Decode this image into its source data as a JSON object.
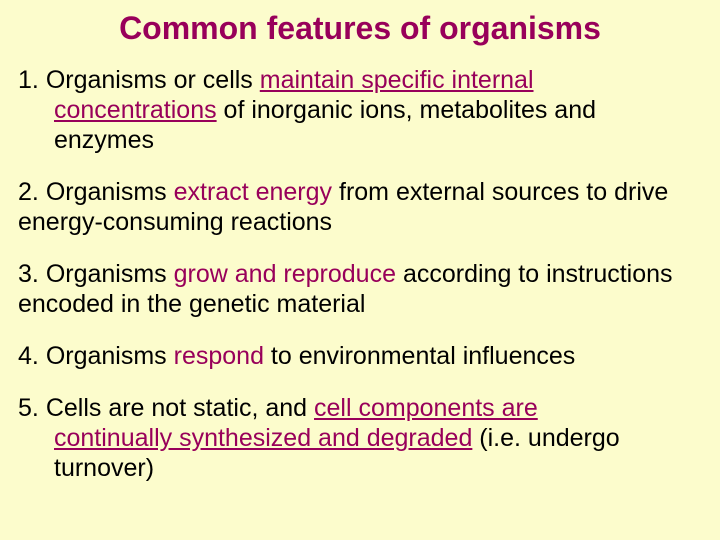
{
  "background_color": "#fcfccc",
  "title_color": "#98005a",
  "highlight_color": "#98005a",
  "text_color": "#000000",
  "font_family": "Comic Sans MS",
  "title_fontsize": 32,
  "body_fontsize": 25,
  "title": "Common features of organisms",
  "items": [
    {
      "num": "1.",
      "pre": "Organisms or cells ",
      "hl_u": "maintain specific internal",
      "line2_hl_u": "concentrations",
      "line2_rest": " of inorganic ions, metabolites and enzymes"
    },
    {
      "num": "2.",
      "pre": "Organisms ",
      "hl": "extract energy",
      "rest": " from external sources to drive energy-consuming reactions"
    },
    {
      "num": "3.",
      "pre": "Organisms ",
      "hl": "grow and reproduce",
      "rest": " according to instructions encoded in the genetic material"
    },
    {
      "num": "4.",
      "pre": "Organisms ",
      "hl": "respond",
      "rest": " to environmental influences"
    },
    {
      "num": "5.",
      "pre": "Cells are not static, and ",
      "hl_u": "cell components are",
      "line2_hl_u": "continually synthesized and degraded",
      "line2_rest": " (i.e. undergo turnover)"
    }
  ]
}
